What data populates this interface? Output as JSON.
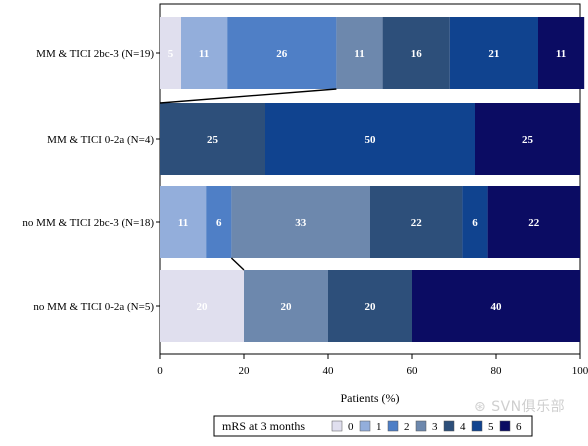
{
  "chart_data": {
    "type": "bar",
    "orientation": "horizontal",
    "stacked": true,
    "categories": [
      "MM & TICI 2bc-3 (N=19)",
      "MM & TICI 0-2a (N=4)",
      "no MM & TICI 2bc-3 (N=18)",
      "no MM & TICI 0-2a (N=5)"
    ],
    "series": [
      {
        "name": "0",
        "color": "#e0dfee",
        "values": [
          5,
          0,
          0,
          20
        ]
      },
      {
        "name": "1",
        "color": "#93aedb",
        "values": [
          11,
          0,
          11,
          0
        ]
      },
      {
        "name": "2",
        "color": "#4f7fc6",
        "values": [
          26,
          0,
          6,
          0
        ]
      },
      {
        "name": "3",
        "color": "#6d88ad",
        "values": [
          11,
          0,
          33,
          20
        ]
      },
      {
        "name": "4",
        "color": "#2d4f7a",
        "values": [
          16,
          25,
          22,
          20
        ]
      },
      {
        "name": "5",
        "color": "#10438f",
        "values": [
          21,
          50,
          6,
          0
        ]
      },
      {
        "name": "6",
        "color": "#0b0c63",
        "values": [
          11,
          25,
          22,
          40
        ]
      }
    ],
    "data_labels": [
      [
        "5",
        "11",
        "26",
        "11",
        "16",
        "21",
        "11"
      ],
      [
        "",
        "",
        "",
        "",
        "25",
        "50",
        "25"
      ],
      [
        "",
        "11",
        "6",
        "33",
        "22",
        "6",
        "22"
      ],
      [
        "20",
        "",
        "",
        "20",
        "20",
        "",
        "40"
      ]
    ],
    "xlabel": "Patients (%)",
    "ylabel": "",
    "xlim": [
      0,
      100
    ],
    "xticks": [
      "0",
      "20",
      "40",
      "60",
      "80",
      "100"
    ],
    "grid": false,
    "legend": {
      "title": "mRS at 3 months",
      "position": "bottom"
    },
    "connectors": [
      {
        "from_category": "MM & TICI 2bc-3 (N=19)",
        "to_category": "MM & TICI 0-2a (N=4)",
        "from_x": 42,
        "to_x": 0
      },
      {
        "from_category": "no MM & TICI 2bc-3 (N=18)",
        "to_category": "no MM & TICI 0-2a (N=5)",
        "from_x": 17,
        "to_x": 20
      }
    ]
  },
  "watermark": "SVN俱乐部"
}
